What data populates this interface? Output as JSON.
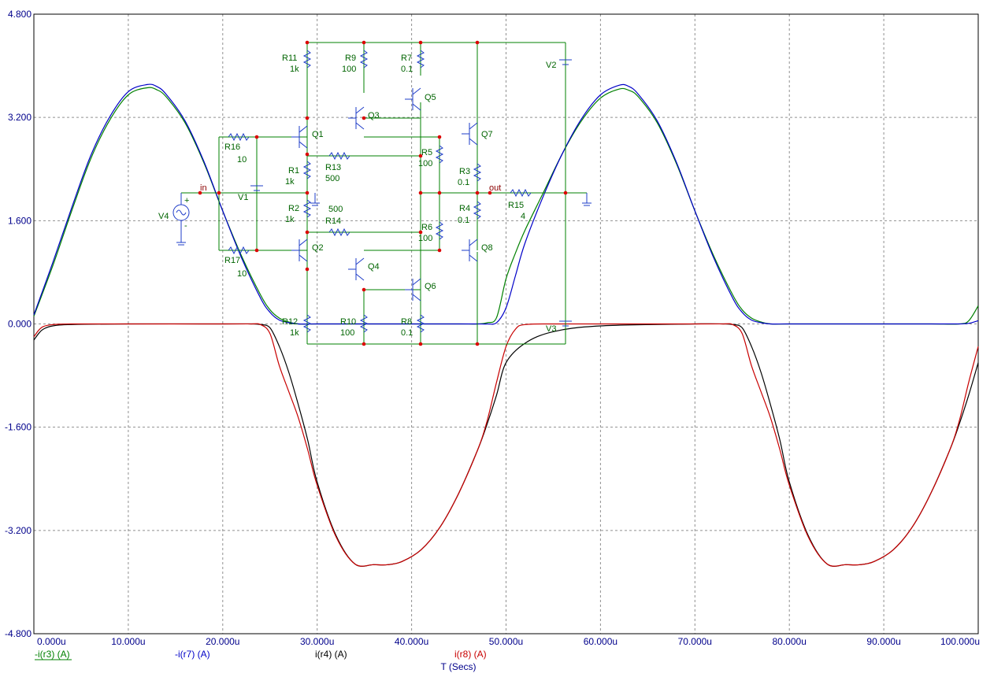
{
  "chart_data": {
    "type": "line",
    "xlabel": "T (Secs)",
    "x_ticks": [
      "0.000u",
      "10.000u",
      "20.000u",
      "30.000u",
      "40.000u",
      "50.000u",
      "60.000u",
      "70.000u",
      "80.000u",
      "90.000u",
      "100.000u"
    ],
    "y_ticks": [
      "4.800",
      "3.200",
      "1.600",
      "0.000",
      "-1.600",
      "-3.200",
      "-4.800"
    ],
    "xlim": [
      0,
      100
    ],
    "ylim": [
      -4.8,
      4.8
    ],
    "grid": true,
    "series": [
      {
        "name": "-i(r3) (A)",
        "color": "#008000",
        "x": [
          0,
          2,
          4,
          6,
          8,
          10,
          12,
          13,
          14,
          16,
          18,
          20,
          22,
          24,
          25,
          26,
          27,
          28,
          30,
          35,
          40,
          45,
          47,
          48,
          49,
          50,
          51,
          52,
          54,
          56,
          58,
          60,
          62,
          63,
          64,
          66,
          68,
          70,
          72,
          74,
          75,
          76,
          77,
          78,
          80,
          85,
          90,
          95,
          98,
          99,
          100
        ],
        "y": [
          0.12,
          0.9,
          1.75,
          2.55,
          3.15,
          3.55,
          3.66,
          3.63,
          3.52,
          3.12,
          2.5,
          1.75,
          1.05,
          0.45,
          0.22,
          0.09,
          0.03,
          0,
          0,
          0,
          0,
          0,
          0,
          0.02,
          0.1,
          0.7,
          1.1,
          1.45,
          2.05,
          2.65,
          3.15,
          3.5,
          3.64,
          3.62,
          3.52,
          3.12,
          2.5,
          1.75,
          1.05,
          0.45,
          0.22,
          0.09,
          0.03,
          0,
          0,
          0,
          0,
          0,
          0,
          0.05,
          0.28
        ]
      },
      {
        "name": "-i(r7) (A)",
        "color": "#0000c8",
        "x": [
          0,
          2,
          4,
          6,
          8,
          10,
          12,
          13,
          14,
          16,
          18,
          20,
          22,
          24,
          25,
          26,
          27,
          28,
          30,
          35,
          40,
          45,
          47,
          48,
          49,
          50,
          51,
          52,
          54,
          56,
          58,
          60,
          62,
          63,
          64,
          66,
          68,
          70,
          72,
          74,
          75,
          76,
          77,
          78,
          80,
          85,
          90,
          95,
          98,
          99,
          100
        ],
        "y": [
          0.14,
          0.95,
          1.8,
          2.6,
          3.2,
          3.6,
          3.71,
          3.68,
          3.56,
          3.15,
          2.52,
          1.75,
          1.02,
          0.4,
          0.18,
          0.06,
          0.02,
          0,
          0,
          0,
          0,
          0,
          0,
          0,
          0.02,
          0.25,
          0.75,
          1.25,
          2.0,
          2.65,
          3.18,
          3.55,
          3.7,
          3.68,
          3.56,
          3.15,
          2.52,
          1.75,
          1.02,
          0.4,
          0.18,
          0.06,
          0.02,
          0,
          0,
          0,
          0,
          0,
          0,
          0.01,
          0.05
        ]
      },
      {
        "name": "i(r4) (A)",
        "color": "#000000",
        "x": [
          0,
          0.5,
          1,
          2,
          4,
          10,
          20,
          23,
          24,
          25,
          26,
          27,
          28,
          29,
          30,
          32,
          34,
          36,
          37.5,
          39,
          41,
          43,
          45,
          47,
          48,
          49,
          50,
          52,
          55,
          60,
          70,
          73,
          74,
          75,
          76,
          77,
          78,
          79,
          80,
          82,
          84,
          86,
          87.5,
          89,
          91,
          93,
          95,
          97,
          98,
          99,
          100
        ],
        "y": [
          -0.25,
          -0.15,
          -0.08,
          -0.03,
          -0.01,
          0,
          0,
          0,
          -0.01,
          -0.06,
          -0.35,
          -0.75,
          -1.25,
          -1.8,
          -2.45,
          -3.28,
          -3.72,
          -3.73,
          -3.73,
          -3.68,
          -3.5,
          -3.15,
          -2.62,
          -1.95,
          -1.55,
          -1.1,
          -0.6,
          -0.3,
          -0.12,
          -0.03,
          0,
          0,
          -0.01,
          -0.06,
          -0.35,
          -0.75,
          -1.25,
          -1.8,
          -2.45,
          -3.28,
          -3.72,
          -3.73,
          -3.73,
          -3.68,
          -3.5,
          -3.15,
          -2.62,
          -1.95,
          -1.55,
          -1.1,
          -0.6
        ]
      },
      {
        "name": "i(r8) (A)",
        "color": "#c80000",
        "x": [
          0,
          0.5,
          1,
          2,
          4,
          10,
          20,
          23,
          24,
          25,
          26,
          27,
          28,
          29,
          30,
          32,
          34,
          36,
          37.5,
          39,
          41,
          43,
          45,
          47,
          48,
          49,
          50,
          51,
          52,
          55,
          60,
          70,
          73,
          74,
          75,
          76,
          77,
          78,
          79,
          80,
          82,
          84,
          86,
          87.5,
          89,
          91,
          93,
          95,
          97,
          98,
          99,
          100
        ],
        "y": [
          -0.2,
          -0.1,
          -0.04,
          -0.01,
          0,
          0,
          0,
          0,
          -0.01,
          -0.15,
          -0.65,
          -1.05,
          -1.45,
          -1.95,
          -2.5,
          -3.3,
          -3.72,
          -3.73,
          -3.73,
          -3.68,
          -3.5,
          -3.15,
          -2.62,
          -1.95,
          -1.5,
          -0.9,
          -0.35,
          -0.08,
          -0.01,
          0,
          0,
          0,
          0,
          -0.01,
          -0.15,
          -0.65,
          -1.05,
          -1.45,
          -1.95,
          -2.5,
          -3.3,
          -3.72,
          -3.73,
          -3.73,
          -3.68,
          -3.5,
          -3.15,
          -2.62,
          -1.95,
          -1.5,
          -0.9,
          -0.35
        ]
      }
    ]
  },
  "schematic": {
    "components": [
      {
        "ref": "R11",
        "value": "1k"
      },
      {
        "ref": "R9",
        "value": "100"
      },
      {
        "ref": "R7",
        "value": "0.1"
      },
      {
        "ref": "V2",
        "value": ""
      },
      {
        "ref": "Q5",
        "value": ""
      },
      {
        "ref": "Q3",
        "value": ""
      },
      {
        "ref": "Q1",
        "value": ""
      },
      {
        "ref": "Q7",
        "value": ""
      },
      {
        "ref": "R16",
        "value": "10"
      },
      {
        "ref": "R13",
        "value": "500"
      },
      {
        "ref": "R5",
        "value": "100"
      },
      {
        "ref": "R1",
        "value": "1k"
      },
      {
        "ref": "R3",
        "value": "0.1"
      },
      {
        "ref": "V1",
        "value": "500"
      },
      {
        "ref": "R15",
        "value": "4"
      },
      {
        "ref": "V4",
        "value": ""
      },
      {
        "ref": "R2",
        "value": "1k"
      },
      {
        "ref": "R14",
        "value": ""
      },
      {
        "ref": "R4",
        "value": "0.1"
      },
      {
        "ref": "R6",
        "value": "100"
      },
      {
        "ref": "Q2",
        "value": ""
      },
      {
        "ref": "Q8",
        "value": ""
      },
      {
        "ref": "R17",
        "value": "10"
      },
      {
        "ref": "Q4",
        "value": ""
      },
      {
        "ref": "Q6",
        "value": ""
      },
      {
        "ref": "R12",
        "value": "1k"
      },
      {
        "ref": "R10",
        "value": "100"
      },
      {
        "ref": "R8",
        "value": "0.1"
      },
      {
        "ref": "V3",
        "value": ""
      }
    ],
    "nets": [
      "in",
      "out"
    ],
    "source_signs": [
      "+",
      "-"
    ]
  }
}
